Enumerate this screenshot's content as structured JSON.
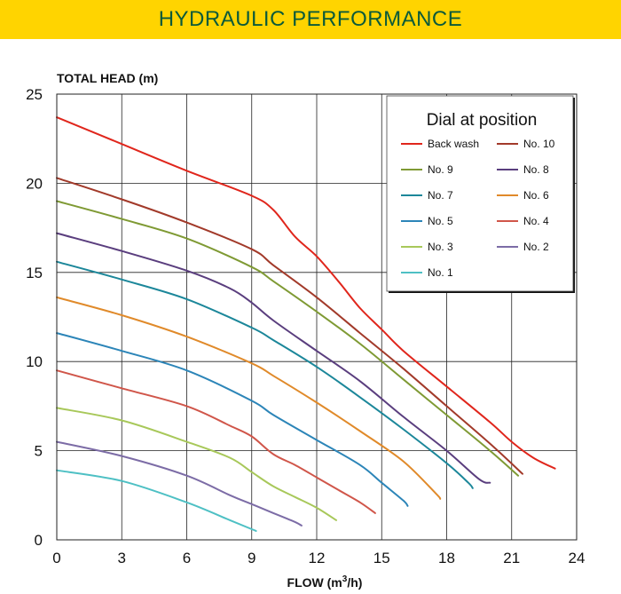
{
  "header": {
    "title": "HYDRAULIC PERFORMANCE"
  },
  "chart_data": {
    "type": "line",
    "ylabel": "TOTAL HEAD (m)",
    "xlabel": "FLOW (m",
    "xlabel_sup": "3",
    "xlabel_tail": "/h)",
    "xlim": [
      0,
      24
    ],
    "ylim": [
      0,
      25
    ],
    "xticks": [
      "0",
      "3",
      "6",
      "9",
      "12",
      "15",
      "18",
      "21",
      "24"
    ],
    "yticks": [
      "0",
      "5",
      "10",
      "15",
      "20",
      "25"
    ],
    "grid": true,
    "legend": {
      "title": "Dial at position",
      "placement": "top-right"
    },
    "series": [
      {
        "name": "Back wash",
        "color": "#e0261c",
        "points": [
          [
            0,
            23.7
          ],
          [
            3,
            22.2
          ],
          [
            6,
            20.7
          ],
          [
            9,
            19.3
          ],
          [
            10,
            18.5
          ],
          [
            11,
            17
          ],
          [
            12,
            15.9
          ],
          [
            13,
            14.5
          ],
          [
            14,
            13
          ],
          [
            15,
            11.8
          ],
          [
            16,
            10.6
          ],
          [
            18,
            8.6
          ],
          [
            20,
            6.6
          ],
          [
            21,
            5.5
          ],
          [
            22,
            4.6
          ],
          [
            23,
            4
          ]
        ]
      },
      {
        "name": "No. 10",
        "color": "#a23a2a",
        "points": [
          [
            0,
            20.3
          ],
          [
            3,
            19.1
          ],
          [
            6,
            17.8
          ],
          [
            9,
            16.3
          ],
          [
            10,
            15.4
          ],
          [
            12,
            13.6
          ],
          [
            14,
            11.6
          ],
          [
            16,
            9.6
          ],
          [
            18,
            7.5
          ],
          [
            20,
            5.4
          ],
          [
            21.5,
            3.7
          ]
        ]
      },
      {
        "name": "No. 9",
        "color": "#7f9a34",
        "points": [
          [
            0,
            19
          ],
          [
            3,
            18
          ],
          [
            6,
            16.9
          ],
          [
            9,
            15.3
          ],
          [
            10,
            14.5
          ],
          [
            12,
            12.8
          ],
          [
            14,
            11
          ],
          [
            16,
            9
          ],
          [
            18,
            7
          ],
          [
            20,
            5
          ],
          [
            21.3,
            3.6
          ]
        ]
      },
      {
        "name": "No. 8",
        "color": "#5a3e7e",
        "points": [
          [
            0,
            17.2
          ],
          [
            3,
            16.2
          ],
          [
            6,
            15.1
          ],
          [
            8,
            14.1
          ],
          [
            9,
            13.3
          ],
          [
            10,
            12.3
          ],
          [
            12,
            10.6
          ],
          [
            14,
            8.9
          ],
          [
            16,
            6.9
          ],
          [
            18,
            5
          ],
          [
            19.5,
            3.4
          ],
          [
            20,
            3.2
          ]
        ]
      },
      {
        "name": "No. 7",
        "color": "#1c879a",
        "points": [
          [
            0,
            15.6
          ],
          [
            3,
            14.6
          ],
          [
            6,
            13.5
          ],
          [
            9,
            11.9
          ],
          [
            10,
            11.2
          ],
          [
            12,
            9.7
          ],
          [
            14,
            8
          ],
          [
            16,
            6.2
          ],
          [
            18,
            4.3
          ],
          [
            19,
            3.2
          ],
          [
            19.2,
            2.9
          ]
        ]
      },
      {
        "name": "No. 6",
        "color": "#e08a2a",
        "points": [
          [
            0,
            13.6
          ],
          [
            3,
            12.6
          ],
          [
            6,
            11.4
          ],
          [
            9,
            9.9
          ],
          [
            10,
            9.2
          ],
          [
            12,
            7.7
          ],
          [
            14,
            6.1
          ],
          [
            16,
            4.4
          ],
          [
            17.5,
            2.6
          ],
          [
            17.7,
            2.3
          ]
        ]
      },
      {
        "name": "No. 5",
        "color": "#2c85b8",
        "points": [
          [
            0,
            11.6
          ],
          [
            3,
            10.6
          ],
          [
            6,
            9.5
          ],
          [
            9,
            7.8
          ],
          [
            10,
            7
          ],
          [
            12,
            5.6
          ],
          [
            14,
            4.2
          ],
          [
            15,
            3.2
          ],
          [
            16,
            2.2
          ],
          [
            16.2,
            1.9
          ]
        ]
      },
      {
        "name": "No. 4",
        "color": "#d0564a",
        "points": [
          [
            0,
            9.5
          ],
          [
            3,
            8.5
          ],
          [
            6,
            7.5
          ],
          [
            8,
            6.4
          ],
          [
            9,
            5.8
          ],
          [
            10,
            4.8
          ],
          [
            11,
            4.2
          ],
          [
            12,
            3.5
          ],
          [
            13,
            2.8
          ],
          [
            14,
            2.1
          ],
          [
            14.7,
            1.5
          ]
        ]
      },
      {
        "name": "No. 3",
        "color": "#a8c85a",
        "points": [
          [
            0,
            7.4
          ],
          [
            3,
            6.7
          ],
          [
            6,
            5.5
          ],
          [
            8,
            4.6
          ],
          [
            9,
            3.8
          ],
          [
            10,
            3
          ],
          [
            11,
            2.4
          ],
          [
            12,
            1.8
          ],
          [
            12.9,
            1.1
          ]
        ]
      },
      {
        "name": "No. 2",
        "color": "#7c6ca6",
        "points": [
          [
            0,
            5.5
          ],
          [
            3,
            4.7
          ],
          [
            6,
            3.6
          ],
          [
            8,
            2.5
          ],
          [
            9,
            2
          ],
          [
            10,
            1.5
          ],
          [
            11,
            1
          ],
          [
            11.3,
            0.8
          ]
        ]
      },
      {
        "name": "No. 1",
        "color": "#4ec0c4",
        "points": [
          [
            0,
            3.9
          ],
          [
            3,
            3.3
          ],
          [
            6,
            2.1
          ],
          [
            8,
            1.1
          ],
          [
            9,
            0.6
          ],
          [
            9.2,
            0.5
          ]
        ]
      }
    ]
  }
}
